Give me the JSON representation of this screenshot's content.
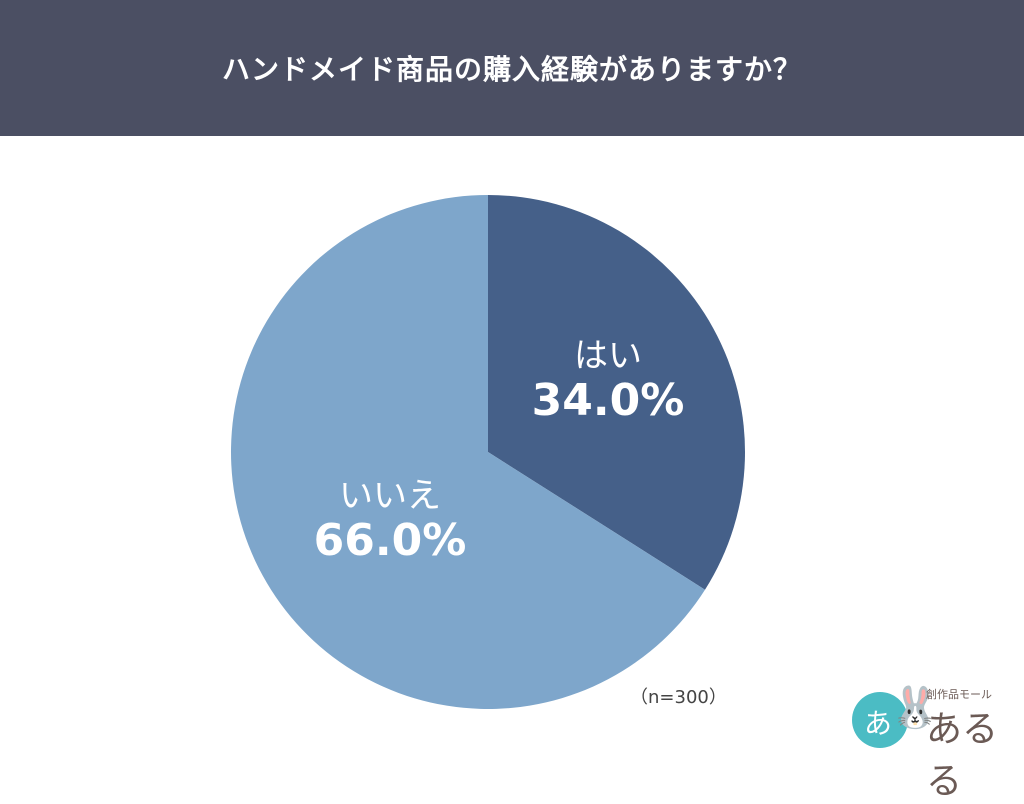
{
  "header": {
    "title": "ハンドメイド商品の購入経験がありますか？"
  },
  "colors": {
    "header_bg": "#4b4f63",
    "yes": "#456089",
    "no": "#7ea6cb"
  },
  "chart_data": {
    "type": "pie",
    "title": "ハンドメイド商品の購入経験がありますか？",
    "categories": [
      "はい",
      "いいえ"
    ],
    "values": [
      34.0,
      66.0
    ],
    "unit": "%",
    "colors": [
      "#456089",
      "#7ea6cb"
    ],
    "start_angle": "12 o'clock, clockwise",
    "annotations": [
      "（n=300）"
    ],
    "legend": "none (labels inside slices)"
  },
  "labels": {
    "yes": {
      "category": "はい",
      "percent": "34.0%"
    },
    "no": {
      "category": "いいえ",
      "percent": "66.0%"
    }
  },
  "sample_size": "（n=300）",
  "logo": {
    "small_text": "創作品モール",
    "big_text": "あるる",
    "circle_text": "あ"
  }
}
